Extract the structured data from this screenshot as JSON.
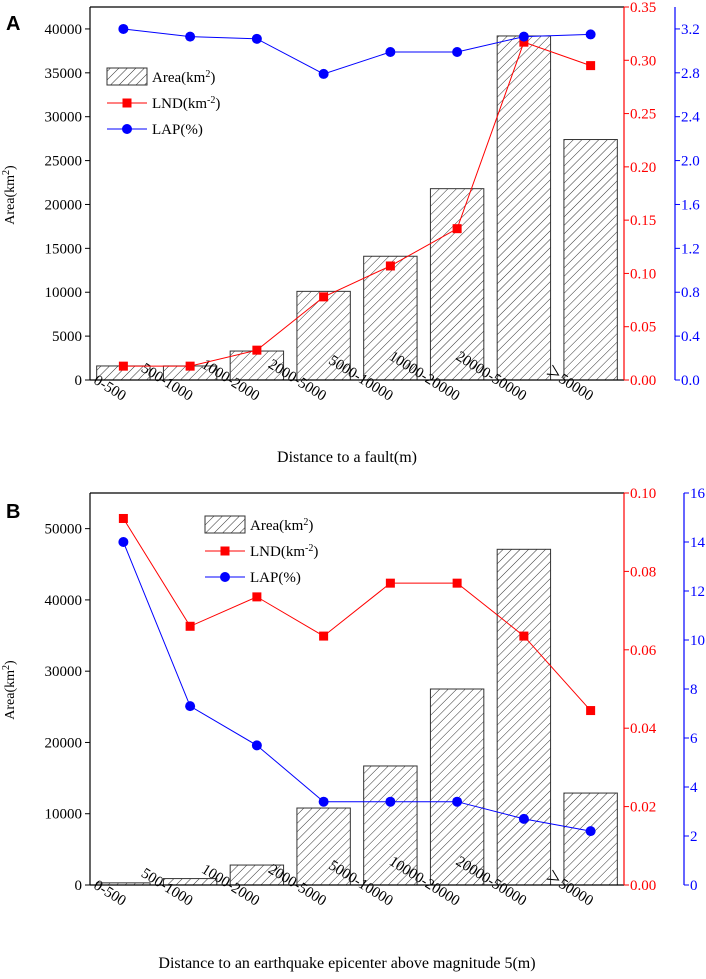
{
  "colors": {
    "lnd": "#ff0000",
    "lap": "#0000ff",
    "bar_edge": "#333333",
    "axis": "#000000"
  },
  "chart_data": [
    {
      "panel_label": "A",
      "type": "bar",
      "xlabel": "Distance to a fault(m)",
      "categories": [
        "0-500",
        "500-1000",
        "1000-2000",
        "2000-5000",
        "5000-10000",
        "10000-20000",
        "20000-50000",
        "＞50000"
      ],
      "series": [
        {
          "name": "Area",
          "type": "bar",
          "axis": "left",
          "values": [
            1600,
            1600,
            3300,
            10100,
            14100,
            21800,
            39200,
            27400
          ]
        },
        {
          "name": "LND",
          "type": "line",
          "axis": "right1",
          "values": [
            0.013,
            0.013,
            0.028,
            0.078,
            0.107,
            0.142,
            0.317,
            0.295
          ]
        },
        {
          "name": "LAP",
          "type": "line",
          "axis": "right2",
          "values": [
            3.2,
            3.13,
            3.11,
            2.79,
            2.99,
            2.99,
            3.13,
            3.15
          ]
        }
      ],
      "axes": {
        "left": {
          "label_base": "Area(km",
          "label_sup": "2",
          "label_close": ")",
          "min": 0,
          "max": 42500,
          "ticks": [
            0,
            5000,
            10000,
            15000,
            20000,
            25000,
            30000,
            35000,
            40000
          ],
          "tick_labels": [
            "0",
            "5000",
            "10000",
            "15000",
            "20000",
            "25000",
            "30000",
            "35000",
            "40000"
          ]
        },
        "right1": {
          "min": 0,
          "max": 0.35,
          "ticks": [
            0,
            0.05,
            0.1,
            0.15,
            0.2,
            0.25,
            0.3,
            0.35
          ],
          "tick_labels": [
            "0.00",
            "0.05",
            "0.10",
            "0.15",
            "0.20",
            "0.25",
            "0.30",
            "0.35"
          ]
        },
        "right2": {
          "min": 0,
          "max": 3.4,
          "ticks": [
            0,
            0.4,
            0.8,
            1.2,
            1.6,
            2.0,
            2.4,
            2.8,
            3.2
          ],
          "tick_labels": [
            "0.0",
            "0.4",
            "0.8",
            "1.2",
            "1.6",
            "2.0",
            "2.4",
            "2.8",
            "3.2"
          ]
        }
      },
      "legend": {
        "position": "upper-left",
        "items": [
          {
            "series": "Area",
            "text": "Area(km",
            "sup": "2",
            "close": ")"
          },
          {
            "series": "LND",
            "text": "LND(km",
            "sup": "-2",
            "close": ")"
          },
          {
            "series": "LAP",
            "text": "LAP(%)",
            "sup": "",
            "close": ""
          }
        ]
      }
    },
    {
      "panel_label": "B",
      "type": "bar",
      "xlabel": "Distance to an earthquake epicenter above magnitude 5(m)",
      "categories": [
        "0-500",
        "500-1000",
        "1000-2000",
        "2000-5000",
        "5000-10000",
        "10000-20000",
        "20000-50000",
        "＞50000"
      ],
      "series": [
        {
          "name": "Area",
          "type": "bar",
          "axis": "left",
          "values": [
            300,
            900,
            2800,
            10800,
            16700,
            27500,
            47100,
            12900
          ]
        },
        {
          "name": "LND",
          "type": "line",
          "axis": "right1",
          "values": [
            0.0935,
            0.066,
            0.0735,
            0.0635,
            0.077,
            0.077,
            0.0635,
            0.0445
          ]
        },
        {
          "name": "LAP",
          "type": "line",
          "axis": "right2",
          "values": [
            14.0,
            7.3,
            5.7,
            3.4,
            3.4,
            3.4,
            2.7,
            2.2
          ]
        }
      ],
      "axes": {
        "left": {
          "label_base": "Area(km",
          "label_sup": "2",
          "label_close": ")",
          "min": 0,
          "max": 55000,
          "ticks": [
            0,
            10000,
            20000,
            30000,
            40000,
            50000
          ],
          "tick_labels": [
            "0",
            "10000",
            "20000",
            "30000",
            "40000",
            "50000"
          ]
        },
        "right1": {
          "min": 0,
          "max": 0.1,
          "ticks": [
            0,
            0.02,
            0.04,
            0.06,
            0.08,
            0.1
          ],
          "tick_labels": [
            "0.00",
            "0.02",
            "0.04",
            "0.06",
            "0.08",
            "0.10"
          ]
        },
        "right2": {
          "min": 0,
          "max": 16,
          "ticks": [
            0,
            2,
            4,
            6,
            8,
            10,
            12,
            14,
            16
          ],
          "tick_labels": [
            "0",
            "2",
            "4",
            "6",
            "8",
            "10",
            "12",
            "14",
            "16"
          ]
        }
      },
      "legend": {
        "position": "upper-center",
        "items": [
          {
            "series": "Area",
            "text": "Area(km",
            "sup": "2",
            "close": ")"
          },
          {
            "series": "LND",
            "text": "LND(km",
            "sup": "-2",
            "close": ")"
          },
          {
            "series": "LAP",
            "text": "LAP(%)",
            "sup": "",
            "close": ""
          }
        ]
      }
    }
  ]
}
